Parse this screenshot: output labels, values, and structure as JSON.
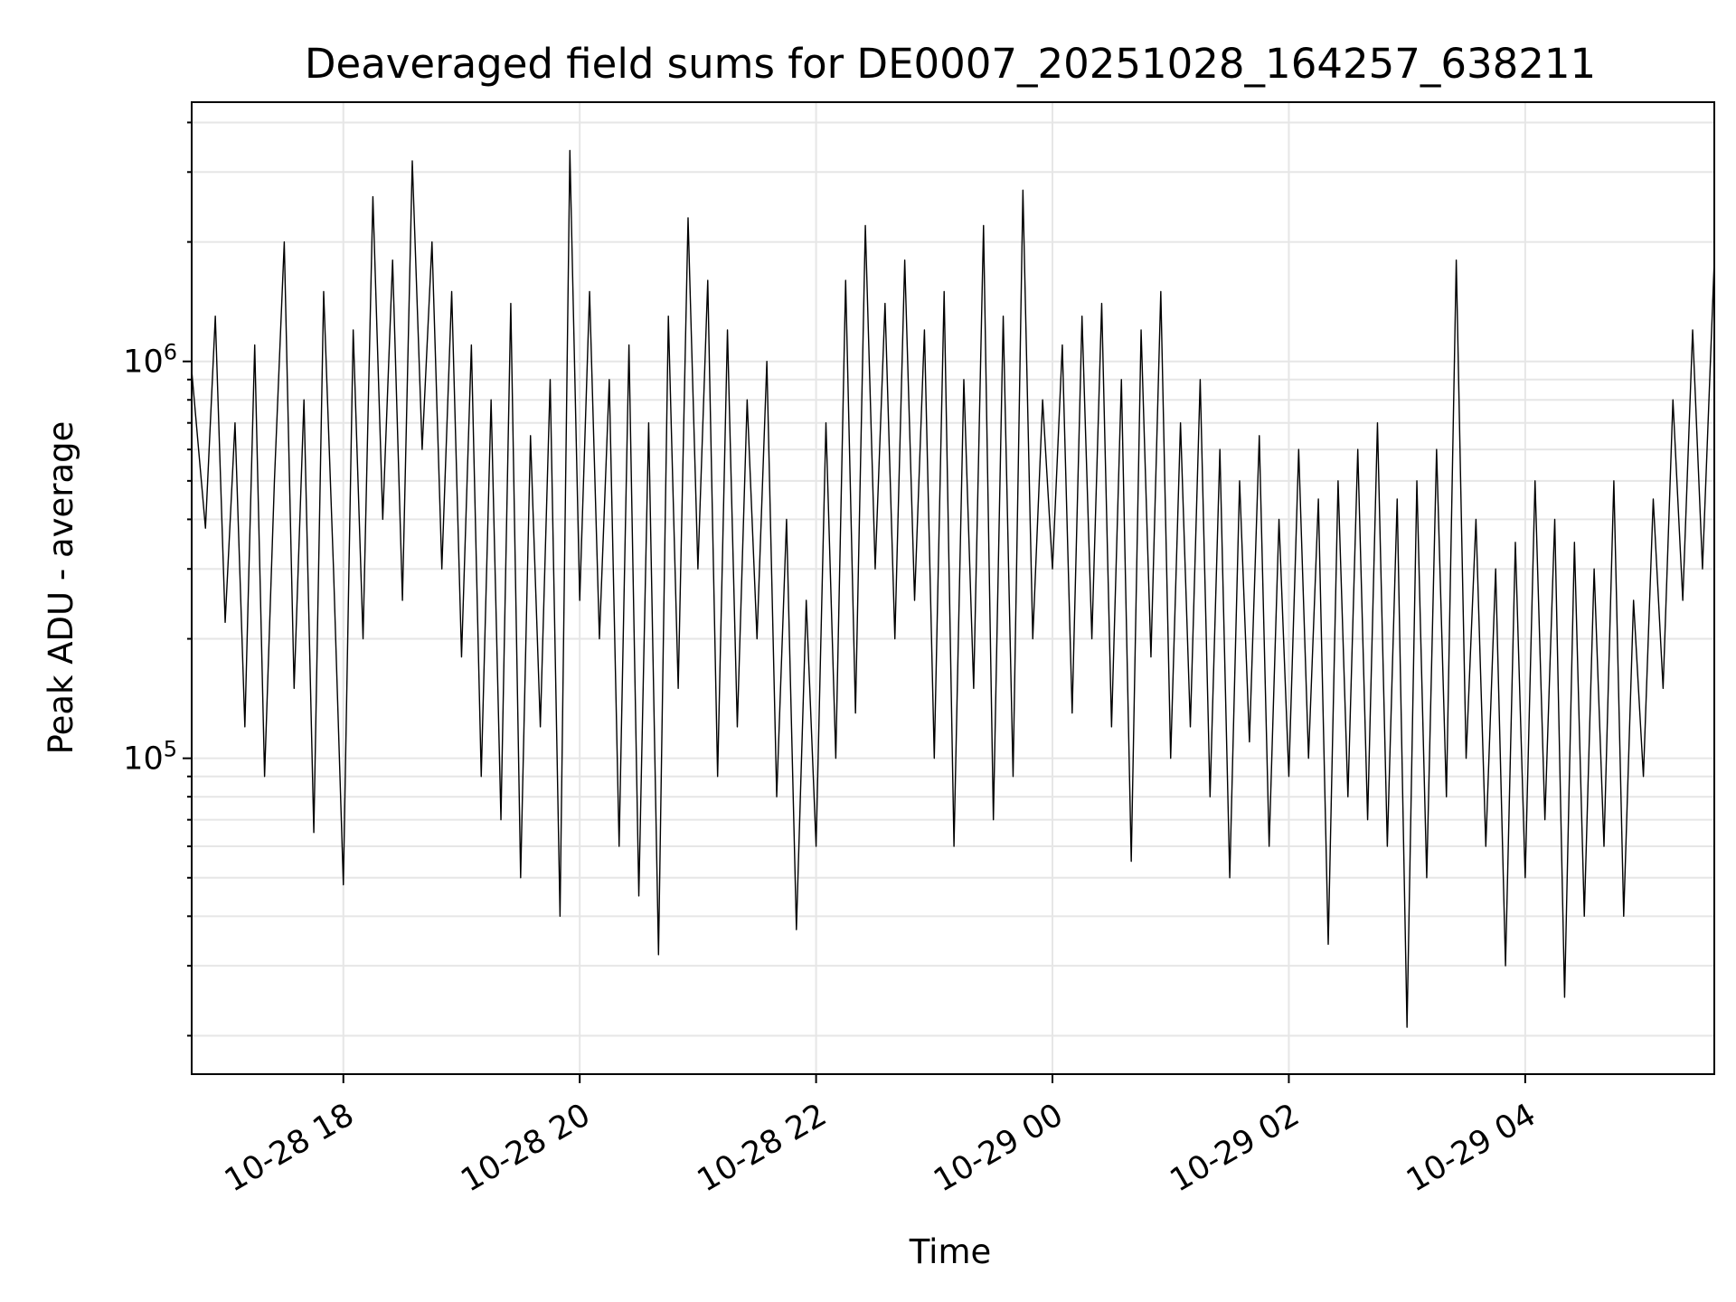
{
  "chart_data": {
    "type": "line",
    "title": "Deaveraged field sums for DE0007_20251028_164257_638211",
    "xlabel": "Time",
    "ylabel": "Peak ADU - average",
    "x_range": [
      "2025-10-28 16:43",
      "2025-10-29 05:36"
    ],
    "ylim": [
      16000,
      4500000
    ],
    "yscale": "log",
    "grid": true,
    "line_color": "#000000",
    "grid_color": "#e6e6e6",
    "x_ticks": [
      {
        "value": "2025-10-28 18:00",
        "label": "10-28 18"
      },
      {
        "value": "2025-10-28 20:00",
        "label": "10-28 20"
      },
      {
        "value": "2025-10-28 22:00",
        "label": "10-28 22"
      },
      {
        "value": "2025-10-29 00:00",
        "label": "10-29 00"
      },
      {
        "value": "2025-10-29 02:00",
        "label": "10-29 02"
      },
      {
        "value": "2025-10-29 04:00",
        "label": "10-29 04"
      }
    ],
    "y_ticks": [
      {
        "value": 100000,
        "base": "10",
        "exp": "5"
      },
      {
        "value": 1000000,
        "base": "10",
        "exp": "6"
      }
    ],
    "series": [
      {
        "name": "",
        "points": [
          [
            "2025-10-28 16:43",
            950000
          ],
          [
            "2025-10-28 16:50",
            380000
          ],
          [
            "2025-10-28 16:55",
            1300000
          ],
          [
            "2025-10-28 17:00",
            220000
          ],
          [
            "2025-10-28 17:05",
            700000
          ],
          [
            "2025-10-28 17:10",
            120000
          ],
          [
            "2025-10-28 17:15",
            1100000
          ],
          [
            "2025-10-28 17:20",
            90000
          ],
          [
            "2025-10-28 17:25",
            500000
          ],
          [
            "2025-10-28 17:30",
            2000000
          ],
          [
            "2025-10-28 17:35",
            150000
          ],
          [
            "2025-10-28 17:40",
            800000
          ],
          [
            "2025-10-28 17:45",
            65000
          ],
          [
            "2025-10-28 17:50",
            1500000
          ],
          [
            "2025-10-28 17:55",
            300000
          ],
          [
            "2025-10-28 18:00",
            48000
          ],
          [
            "2025-10-28 18:05",
            1200000
          ],
          [
            "2025-10-28 18:10",
            200000
          ],
          [
            "2025-10-28 18:15",
            2600000
          ],
          [
            "2025-10-28 18:20",
            400000
          ],
          [
            "2025-10-28 18:25",
            1800000
          ],
          [
            "2025-10-28 18:30",
            250000
          ],
          [
            "2025-10-28 18:35",
            3200000
          ],
          [
            "2025-10-28 18:40",
            600000
          ],
          [
            "2025-10-28 18:45",
            2000000
          ],
          [
            "2025-10-28 18:50",
            300000
          ],
          [
            "2025-10-28 18:55",
            1500000
          ],
          [
            "2025-10-28 19:00",
            180000
          ],
          [
            "2025-10-28 19:05",
            1100000
          ],
          [
            "2025-10-28 19:10",
            90000
          ],
          [
            "2025-10-28 19:15",
            800000
          ],
          [
            "2025-10-28 19:20",
            70000
          ],
          [
            "2025-10-28 19:25",
            1400000
          ],
          [
            "2025-10-28 19:30",
            50000
          ],
          [
            "2025-10-28 19:35",
            650000
          ],
          [
            "2025-10-28 19:40",
            120000
          ],
          [
            "2025-10-28 19:45",
            900000
          ],
          [
            "2025-10-28 19:50",
            40000
          ],
          [
            "2025-10-28 19:55",
            3400000
          ],
          [
            "2025-10-28 20:00",
            250000
          ],
          [
            "2025-10-28 20:05",
            1500000
          ],
          [
            "2025-10-28 20:10",
            200000
          ],
          [
            "2025-10-28 20:15",
            900000
          ],
          [
            "2025-10-28 20:20",
            60000
          ],
          [
            "2025-10-28 20:25",
            1100000
          ],
          [
            "2025-10-28 20:30",
            45000
          ],
          [
            "2025-10-28 20:35",
            700000
          ],
          [
            "2025-10-28 20:40",
            32000
          ],
          [
            "2025-10-28 20:45",
            1300000
          ],
          [
            "2025-10-28 20:50",
            150000
          ],
          [
            "2025-10-28 20:55",
            2300000
          ],
          [
            "2025-10-28 21:00",
            300000
          ],
          [
            "2025-10-28 21:05",
            1600000
          ],
          [
            "2025-10-28 21:10",
            90000
          ],
          [
            "2025-10-28 21:15",
            1200000
          ],
          [
            "2025-10-28 21:20",
            120000
          ],
          [
            "2025-10-28 21:25",
            800000
          ],
          [
            "2025-10-28 21:30",
            200000
          ],
          [
            "2025-10-28 21:35",
            1000000
          ],
          [
            "2025-10-28 21:40",
            80000
          ],
          [
            "2025-10-28 21:45",
            400000
          ],
          [
            "2025-10-28 21:50",
            37000
          ],
          [
            "2025-10-28 21:55",
            250000
          ],
          [
            "2025-10-28 22:00",
            60000
          ],
          [
            "2025-10-28 22:05",
            700000
          ],
          [
            "2025-10-28 22:10",
            100000
          ],
          [
            "2025-10-28 22:15",
            1600000
          ],
          [
            "2025-10-28 22:20",
            130000
          ],
          [
            "2025-10-28 22:25",
            2200000
          ],
          [
            "2025-10-28 22:30",
            300000
          ],
          [
            "2025-10-28 22:35",
            1400000
          ],
          [
            "2025-10-28 22:40",
            200000
          ],
          [
            "2025-10-28 22:45",
            1800000
          ],
          [
            "2025-10-28 22:50",
            250000
          ],
          [
            "2025-10-28 22:55",
            1200000
          ],
          [
            "2025-10-28 23:00",
            100000
          ],
          [
            "2025-10-28 23:05",
            1500000
          ],
          [
            "2025-10-28 23:10",
            60000
          ],
          [
            "2025-10-28 23:15",
            900000
          ],
          [
            "2025-10-28 23:20",
            150000
          ],
          [
            "2025-10-28 23:25",
            2200000
          ],
          [
            "2025-10-28 23:30",
            70000
          ],
          [
            "2025-10-28 23:35",
            1300000
          ],
          [
            "2025-10-28 23:40",
            90000
          ],
          [
            "2025-10-28 23:45",
            2700000
          ],
          [
            "2025-10-28 23:50",
            200000
          ],
          [
            "2025-10-28 23:55",
            800000
          ],
          [
            "2025-10-29 00:00",
            300000
          ],
          [
            "2025-10-29 00:05",
            1100000
          ],
          [
            "2025-10-29 00:10",
            130000
          ],
          [
            "2025-10-29 00:15",
            1300000
          ],
          [
            "2025-10-29 00:20",
            200000
          ],
          [
            "2025-10-29 00:25",
            1400000
          ],
          [
            "2025-10-29 00:30",
            120000
          ],
          [
            "2025-10-29 00:35",
            900000
          ],
          [
            "2025-10-29 00:40",
            55000
          ],
          [
            "2025-10-29 00:45",
            1200000
          ],
          [
            "2025-10-29 00:50",
            180000
          ],
          [
            "2025-10-29 00:55",
            1500000
          ],
          [
            "2025-10-29 01:00",
            100000
          ],
          [
            "2025-10-29 01:05",
            700000
          ],
          [
            "2025-10-29 01:10",
            120000
          ],
          [
            "2025-10-29 01:15",
            900000
          ],
          [
            "2025-10-29 01:20",
            80000
          ],
          [
            "2025-10-29 01:25",
            600000
          ],
          [
            "2025-10-29 01:30",
            50000
          ],
          [
            "2025-10-29 01:35",
            500000
          ],
          [
            "2025-10-29 01:40",
            110000
          ],
          [
            "2025-10-29 01:45",
            650000
          ],
          [
            "2025-10-29 01:50",
            60000
          ],
          [
            "2025-10-29 01:55",
            400000
          ],
          [
            "2025-10-29 02:00",
            90000
          ],
          [
            "2025-10-29 02:05",
            600000
          ],
          [
            "2025-10-29 02:10",
            100000
          ],
          [
            "2025-10-29 02:15",
            450000
          ],
          [
            "2025-10-29 02:20",
            34000
          ],
          [
            "2025-10-29 02:25",
            500000
          ],
          [
            "2025-10-29 02:30",
            80000
          ],
          [
            "2025-10-29 02:35",
            600000
          ],
          [
            "2025-10-29 02:40",
            70000
          ],
          [
            "2025-10-29 02:45",
            700000
          ],
          [
            "2025-10-29 02:50",
            60000
          ],
          [
            "2025-10-29 02:55",
            450000
          ],
          [
            "2025-10-29 03:00",
            21000
          ],
          [
            "2025-10-29 03:05",
            500000
          ],
          [
            "2025-10-29 03:10",
            50000
          ],
          [
            "2025-10-29 03:15",
            600000
          ],
          [
            "2025-10-29 03:20",
            80000
          ],
          [
            "2025-10-29 03:25",
            1800000
          ],
          [
            "2025-10-29 03:30",
            100000
          ],
          [
            "2025-10-29 03:35",
            400000
          ],
          [
            "2025-10-29 03:40",
            60000
          ],
          [
            "2025-10-29 03:45",
            300000
          ],
          [
            "2025-10-29 03:50",
            30000
          ],
          [
            "2025-10-29 03:55",
            350000
          ],
          [
            "2025-10-29 04:00",
            50000
          ],
          [
            "2025-10-29 04:05",
            500000
          ],
          [
            "2025-10-29 04:10",
            70000
          ],
          [
            "2025-10-29 04:15",
            400000
          ],
          [
            "2025-10-29 04:20",
            25000
          ],
          [
            "2025-10-29 04:25",
            350000
          ],
          [
            "2025-10-29 04:30",
            40000
          ],
          [
            "2025-10-29 04:35",
            300000
          ],
          [
            "2025-10-29 04:40",
            60000
          ],
          [
            "2025-10-29 04:45",
            500000
          ],
          [
            "2025-10-29 04:50",
            40000
          ],
          [
            "2025-10-29 04:55",
            250000
          ],
          [
            "2025-10-29 05:00",
            90000
          ],
          [
            "2025-10-29 05:05",
            450000
          ],
          [
            "2025-10-29 05:10",
            150000
          ],
          [
            "2025-10-29 05:15",
            800000
          ],
          [
            "2025-10-29 05:20",
            250000
          ],
          [
            "2025-10-29 05:25",
            1200000
          ],
          [
            "2025-10-29 05:30",
            300000
          ],
          [
            "2025-10-29 05:36",
            1800000
          ]
        ]
      }
    ]
  }
}
